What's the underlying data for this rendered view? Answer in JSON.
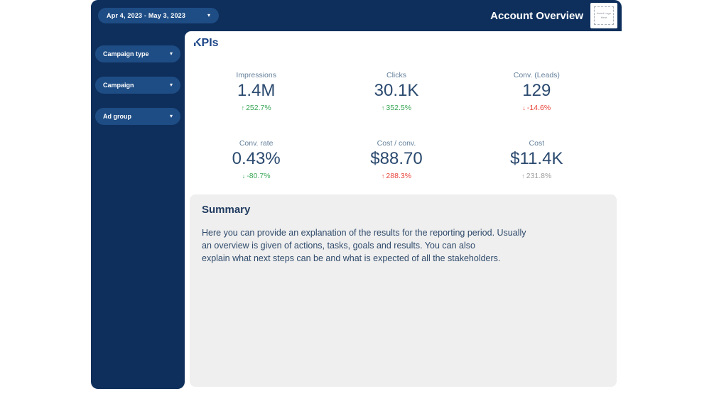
{
  "header": {
    "date_range": "Apr 4, 2023 - May 3, 2023",
    "title": "Account Overview",
    "logo_placeholder_text": "Insert Logo Here"
  },
  "sidebar": {
    "filters": [
      {
        "label": "Campaign type"
      },
      {
        "label": "Campaign"
      },
      {
        "label": "Ad group"
      }
    ]
  },
  "kpis": {
    "section_title": "KPIs",
    "cards": [
      {
        "label": "Impressions",
        "value": "1.4M",
        "delta": "252.7%",
        "direction": "up",
        "trend_color": "green"
      },
      {
        "label": "Clicks",
        "value": "30.1K",
        "delta": "352.5%",
        "direction": "up",
        "trend_color": "green"
      },
      {
        "label": "Conv. (Leads)",
        "value": "129",
        "delta": "-14.6%",
        "direction": "down",
        "trend_color": "red"
      },
      {
        "label": "Conv. rate",
        "value": "0.43%",
        "delta": "-80.7%",
        "direction": "down",
        "trend_color": "green"
      },
      {
        "label": "Cost / conv.",
        "value": "$88.70",
        "delta": "288.3%",
        "direction": "up",
        "trend_color": "red"
      },
      {
        "label": "Cost",
        "value": "$11.4K",
        "delta": "231.8%",
        "direction": "up",
        "trend_color": "gray"
      }
    ]
  },
  "summary": {
    "title": "Summary",
    "lines": [
      "Here you can provide an explanation of the results for the reporting period. Usually",
      "an overview is given of actions, tasks, goals and results. You can also",
      "explain what next steps can be and what is expected of all the stakeholders."
    ]
  },
  "icons": {
    "up": "↑",
    "down": "↓",
    "caret": "▾"
  },
  "colors": {
    "navy": "#0e2f5c",
    "pill_blue": "#1e4d85",
    "heading_blue": "#1c4587",
    "value_navy": "#2b4a6f",
    "label_blue_gray": "#64809b",
    "green": "#3aa757",
    "red": "#e8453c",
    "gray_delta": "#9e9e9e",
    "summary_bg": "#efefef"
  }
}
